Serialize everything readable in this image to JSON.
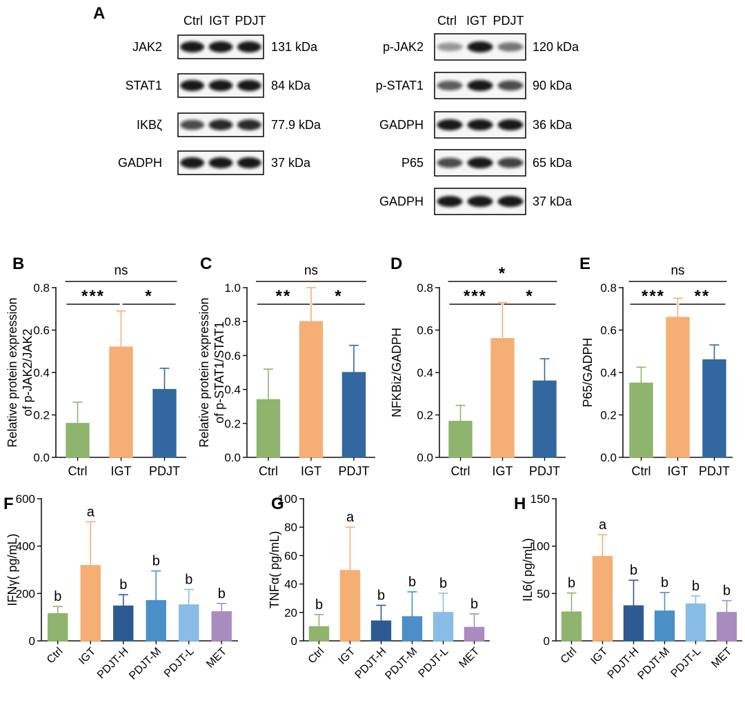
{
  "colors": {
    "green": "#8fb46d",
    "orange": "#f5ae74",
    "darkblue": "#32679f",
    "navy": "#2d5a93",
    "midblue": "#4b8fc9",
    "lightblue": "#88bde7",
    "purple": "#a98cbf"
  },
  "panelA": {
    "label": "A",
    "left": {
      "lanes": [
        "Ctrl",
        "IGT",
        "PDJT"
      ],
      "blots": [
        {
          "protein": "JAK2",
          "size": "131 kDa"
        },
        {
          "protein": "STAT1",
          "size": "84 kDa"
        },
        {
          "protein": "IKBζ",
          "size": "77.9 kDa"
        },
        {
          "protein": "GADPH",
          "size": "37 kDa"
        }
      ]
    },
    "right": {
      "lanes": [
        "Ctrl",
        "IGT",
        "PDJT"
      ],
      "blots": [
        {
          "protein": "p-JAK2",
          "size": "120 kDa"
        },
        {
          "protein": "p-STAT1",
          "size": "90 kDa"
        },
        {
          "protein": "GADPH",
          "size": "36 kDa"
        },
        {
          "protein": "P65",
          "size": "65 kDa"
        },
        {
          "protein": "GADPH",
          "size": "37 kDa"
        }
      ]
    }
  },
  "chart_data": [
    {
      "panel": "B",
      "type": "bar",
      "categories": [
        "Ctrl",
        "IGT",
        "PDJT"
      ],
      "values": [
        0.16,
        0.52,
        0.32
      ],
      "errors": [
        0.1,
        0.17,
        0.1
      ],
      "colors": [
        "#8fb46d",
        "#f5ae74",
        "#32679f"
      ],
      "ylabel": [
        "Relative protein expression",
        "of p-JAK2/JAK2"
      ],
      "ylim": [
        0,
        0.8
      ],
      "yticks": [
        "0.0",
        "0.2",
        "0.4",
        "0.6",
        "0.8"
      ],
      "annotations": [
        {
          "from": 0,
          "to": 1,
          "text": "***",
          "level": 1
        },
        {
          "from": 1,
          "to": 2,
          "text": "*",
          "level": 1
        },
        {
          "from": 0,
          "to": 2,
          "text": "ns",
          "level": 2
        }
      ]
    },
    {
      "panel": "C",
      "type": "bar",
      "categories": [
        "Ctrl",
        "IGT",
        "PDJT"
      ],
      "values": [
        0.34,
        0.8,
        0.5
      ],
      "errors": [
        0.18,
        0.2,
        0.16
      ],
      "colors": [
        "#8fb46d",
        "#f5ae74",
        "#32679f"
      ],
      "ylabel": [
        "Relative protein expression",
        "of p-STAT1/STAT1"
      ],
      "ylim": [
        0,
        1.0
      ],
      "yticks": [
        "0.0",
        "0.2",
        "0.4",
        "0.6",
        "0.8",
        "1.0"
      ],
      "annotations": [
        {
          "from": 0,
          "to": 1,
          "text": "**",
          "level": 1
        },
        {
          "from": 1,
          "to": 2,
          "text": "*",
          "level": 1
        },
        {
          "from": 0,
          "to": 2,
          "text": "ns",
          "level": 2
        }
      ]
    },
    {
      "panel": "D",
      "type": "bar",
      "categories": [
        "Ctrl",
        "IGT",
        "PDJT"
      ],
      "values": [
        0.17,
        0.56,
        0.36
      ],
      "errors": [
        0.075,
        0.17,
        0.105
      ],
      "colors": [
        "#8fb46d",
        "#f5ae74",
        "#32679f"
      ],
      "ylabel": [
        "NFKBiz/GADPH"
      ],
      "ylim": [
        0,
        0.8
      ],
      "yticks": [
        "0.0",
        "0.2",
        "0.4",
        "0.6",
        "0.8"
      ],
      "annotations": [
        {
          "from": 0,
          "to": 1,
          "text": "***",
          "level": 1
        },
        {
          "from": 1,
          "to": 2,
          "text": "*",
          "level": 1
        },
        {
          "from": 0,
          "to": 2,
          "text": "*",
          "level": 2
        }
      ]
    },
    {
      "panel": "E",
      "type": "bar",
      "categories": [
        "Ctrl",
        "IGT",
        "PDJT"
      ],
      "values": [
        0.35,
        0.66,
        0.46
      ],
      "errors": [
        0.075,
        0.09,
        0.07
      ],
      "colors": [
        "#8fb46d",
        "#f5ae74",
        "#32679f"
      ],
      "ylabel": [
        "P65/GADPH"
      ],
      "ylim": [
        0,
        0.8
      ],
      "yticks": [
        "0.0",
        "0.2",
        "0.4",
        "0.6",
        "0.8"
      ],
      "annotations": [
        {
          "from": 0,
          "to": 1,
          "text": "***",
          "level": 1
        },
        {
          "from": 1,
          "to": 2,
          "text": "**",
          "level": 1
        },
        {
          "from": 0,
          "to": 2,
          "text": "ns",
          "level": 2
        }
      ]
    },
    {
      "panel": "F",
      "type": "bar",
      "categories": [
        "Ctrl",
        "IGT",
        "PDJT-H",
        "PDJT-M",
        "PDJT-L",
        "MET"
      ],
      "values": [
        115,
        318,
        147,
        170,
        152,
        123
      ],
      "errors": [
        30,
        185,
        48,
        125,
        65,
        35
      ],
      "colors": [
        "#8fb46d",
        "#f5ae74",
        "#2d5a93",
        "#4b8fc9",
        "#88bde7",
        "#a98cbf"
      ],
      "letters": [
        "b",
        "a",
        "b",
        "b",
        "b",
        "b"
      ],
      "ylabel": [
        "IFNγ( pg/mL)"
      ],
      "ylim": [
        0,
        600
      ],
      "yticks": [
        "0",
        "200",
        "400",
        "600"
      ]
    },
    {
      "panel": "G",
      "type": "bar",
      "categories": [
        "Ctrl",
        "IGT",
        "PDJT-H",
        "PDJT-M",
        "PDJT-L",
        "MET"
      ],
      "values": [
        10,
        49.5,
        14,
        17,
        20,
        9.5
      ],
      "errors": [
        8.5,
        30.5,
        11,
        17.5,
        13.5,
        9.5
      ],
      "colors": [
        "#8fb46d",
        "#f5ae74",
        "#2d5a93",
        "#4b8fc9",
        "#88bde7",
        "#a98cbf"
      ],
      "letters": [
        "b",
        "a",
        "b",
        "b",
        "b",
        "b"
      ],
      "ylabel": [
        "TNFα( pg/mL)"
      ],
      "ylim": [
        0,
        100
      ],
      "yticks": [
        "0",
        "20",
        "40",
        "60",
        "80",
        "100"
      ]
    },
    {
      "panel": "H",
      "type": "bar",
      "categories": [
        "Ctrl",
        "IGT",
        "PDJT-H",
        "PDJT-M",
        "PDJT-L",
        "MET"
      ],
      "values": [
        30.5,
        89,
        37,
        31.5,
        39,
        30
      ],
      "errors": [
        20,
        23,
        27,
        19.5,
        8.5,
        12.5
      ],
      "colors": [
        "#8fb46d",
        "#f5ae74",
        "#2d5a93",
        "#4b8fc9",
        "#88bde7",
        "#a98cbf"
      ],
      "letters": [
        "b",
        "a",
        "b",
        "b",
        "b",
        "b"
      ],
      "ylabel": [
        "IL6( pg/mL)"
      ],
      "ylim": [
        0,
        150
      ],
      "yticks": [
        "0",
        "50",
        "100",
        "150"
      ]
    }
  ]
}
